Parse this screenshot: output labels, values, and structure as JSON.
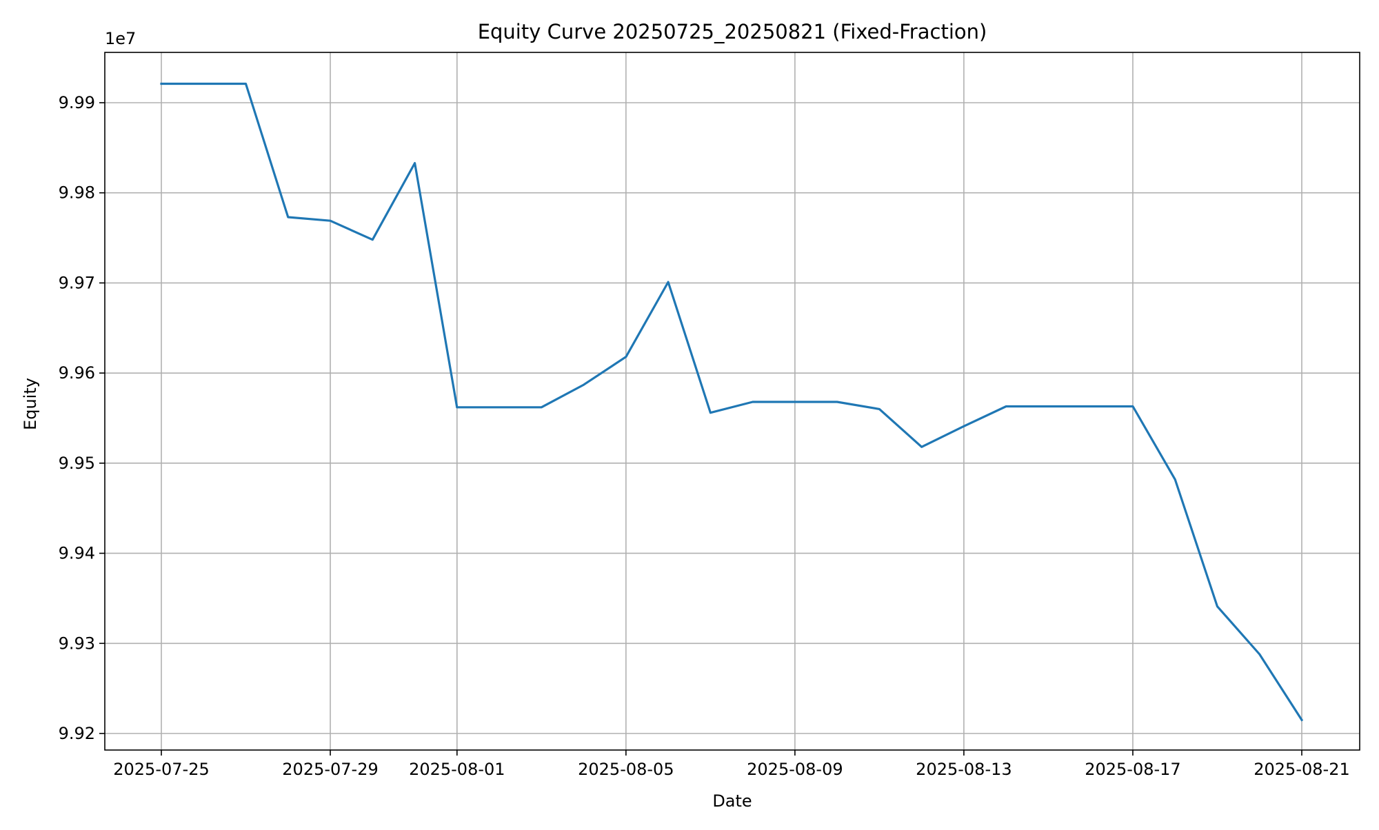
{
  "chart_data": {
    "type": "line",
    "title": "Equity Curve 20250725_20250821 (Fixed-Fraction)",
    "xlabel": "Date",
    "ylabel": "Equity",
    "y_offset_label": "1e7",
    "y_scale_factor": 10000000,
    "xlim": [
      "2025-07-23",
      "2025-08-21"
    ],
    "ylim": [
      9.918,
      9.9955
    ],
    "x_ticks": [
      "2025-07-25",
      "2025-07-29",
      "2025-08-01",
      "2025-08-05",
      "2025-08-09",
      "2025-08-13",
      "2025-08-17",
      "2025-08-21"
    ],
    "y_ticks": [
      9.92,
      9.93,
      9.94,
      9.95,
      9.96,
      9.97,
      9.98,
      9.99
    ],
    "y_tick_labels": [
      "9.92",
      "9.93",
      "9.94",
      "9.95",
      "9.96",
      "9.97",
      "9.98",
      "9.99"
    ],
    "grid": true,
    "series": [
      {
        "color": "#1f77b4",
        "x": [
          "2025-07-25",
          "2025-07-26",
          "2025-07-27",
          "2025-07-28",
          "2025-07-29",
          "2025-07-30",
          "2025-07-31",
          "2025-08-01",
          "2025-08-02",
          "2025-08-03",
          "2025-08-04",
          "2025-08-05",
          "2025-08-06",
          "2025-08-07",
          "2025-08-08",
          "2025-08-09",
          "2025-08-10",
          "2025-08-11",
          "2025-08-12",
          "2025-08-13",
          "2025-08-14",
          "2025-08-15",
          "2025-08-16",
          "2025-08-17",
          "2025-08-18",
          "2025-08-19",
          "2025-08-20",
          "2025-08-21"
        ],
        "values": [
          99921000,
          99921000,
          99921000,
          99773000,
          99769000,
          99748000,
          99833000,
          99562000,
          99562000,
          99562000,
          99587000,
          99618000,
          99701000,
          99556000,
          99568000,
          99568000,
          99568000,
          99560000,
          99518000,
          99541000,
          99563000,
          99563000,
          99563000,
          99563000,
          99482000,
          99341000,
          99288000,
          99215000
        ]
      }
    ]
  }
}
